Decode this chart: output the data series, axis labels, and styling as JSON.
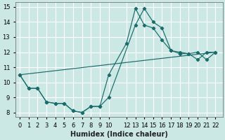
{
  "xlabel": "Humidex (Indice chaleur)",
  "bg_color": "#cce8e5",
  "line_color": "#1a6b6b",
  "xlim": [
    -0.5,
    22.8
  ],
  "ylim": [
    7.7,
    15.3
  ],
  "yticks": [
    8,
    9,
    10,
    11,
    12,
    13,
    14,
    15
  ],
  "xticks": [
    0,
    1,
    2,
    3,
    4,
    5,
    6,
    7,
    8,
    9,
    10,
    12,
    13,
    14,
    15,
    16,
    17,
    18,
    19,
    20,
    21,
    22
  ],
  "line1_x": [
    0,
    1,
    2,
    3,
    4,
    5,
    6,
    7,
    8,
    9,
    10,
    13,
    14,
    15,
    16,
    17,
    18,
    19,
    20,
    21,
    22
  ],
  "line1_y": [
    10.5,
    9.6,
    9.6,
    8.7,
    8.6,
    8.6,
    8.1,
    8.0,
    8.4,
    8.4,
    9.0,
    13.8,
    14.9,
    14.0,
    13.6,
    12.1,
    11.9,
    11.9,
    11.5,
    12.0,
    12.0
  ],
  "line2_x": [
    0,
    1,
    2,
    3,
    4,
    5,
    6,
    7,
    8,
    9,
    10,
    12,
    13,
    14,
    15,
    16,
    17,
    18,
    19,
    20,
    21,
    22
  ],
  "line2_y": [
    10.5,
    9.6,
    9.6,
    8.7,
    8.6,
    8.6,
    8.1,
    8.0,
    8.4,
    8.4,
    10.5,
    12.6,
    14.9,
    13.8,
    13.6,
    12.8,
    12.1,
    12.0,
    11.9,
    12.0,
    11.5,
    12.0
  ],
  "line3_x": [
    0,
    22
  ],
  "line3_y": [
    10.5,
    12.0
  ]
}
